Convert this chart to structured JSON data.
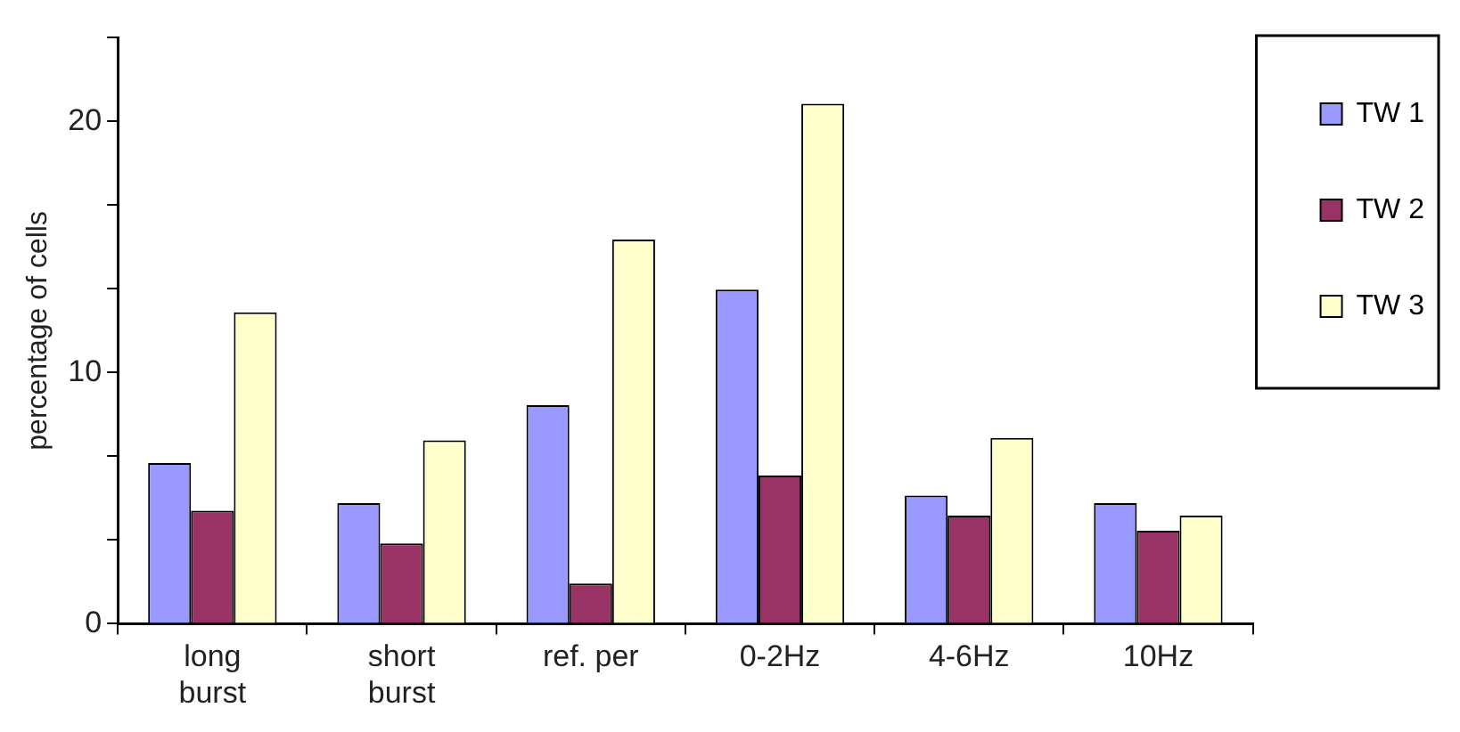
{
  "chart_data": {
    "type": "bar",
    "ylabel": "percentage of cells",
    "categories": [
      "long burst",
      "short burst",
      "ref. per",
      "0-2Hz",
      "4-6Hz",
      "10Hz"
    ],
    "series": [
      {
        "name": "TW 1",
        "color": "#9999ff",
        "values": [
          6.4,
          4.8,
          8.7,
          13.3,
          5.1,
          4.8
        ]
      },
      {
        "name": "TW 2",
        "color": "#993366",
        "values": [
          4.5,
          3.2,
          1.6,
          5.9,
          4.3,
          3.7
        ]
      },
      {
        "name": "TW 3",
        "color": "#ffffcc",
        "values": [
          12.4,
          7.3,
          15.3,
          20.7,
          7.4,
          4.3
        ]
      }
    ],
    "ylim": [
      0,
      23.33
    ],
    "yticks": [
      0,
      {
        "value": 3.33,
        "label": null
      },
      {
        "value": 6.67,
        "label": null
      },
      10,
      {
        "value": 13.33,
        "label": null
      },
      {
        "value": 16.67,
        "label": null
      },
      20,
      {
        "value": 23.33,
        "label": null
      }
    ],
    "grid": false,
    "legend": "right"
  }
}
